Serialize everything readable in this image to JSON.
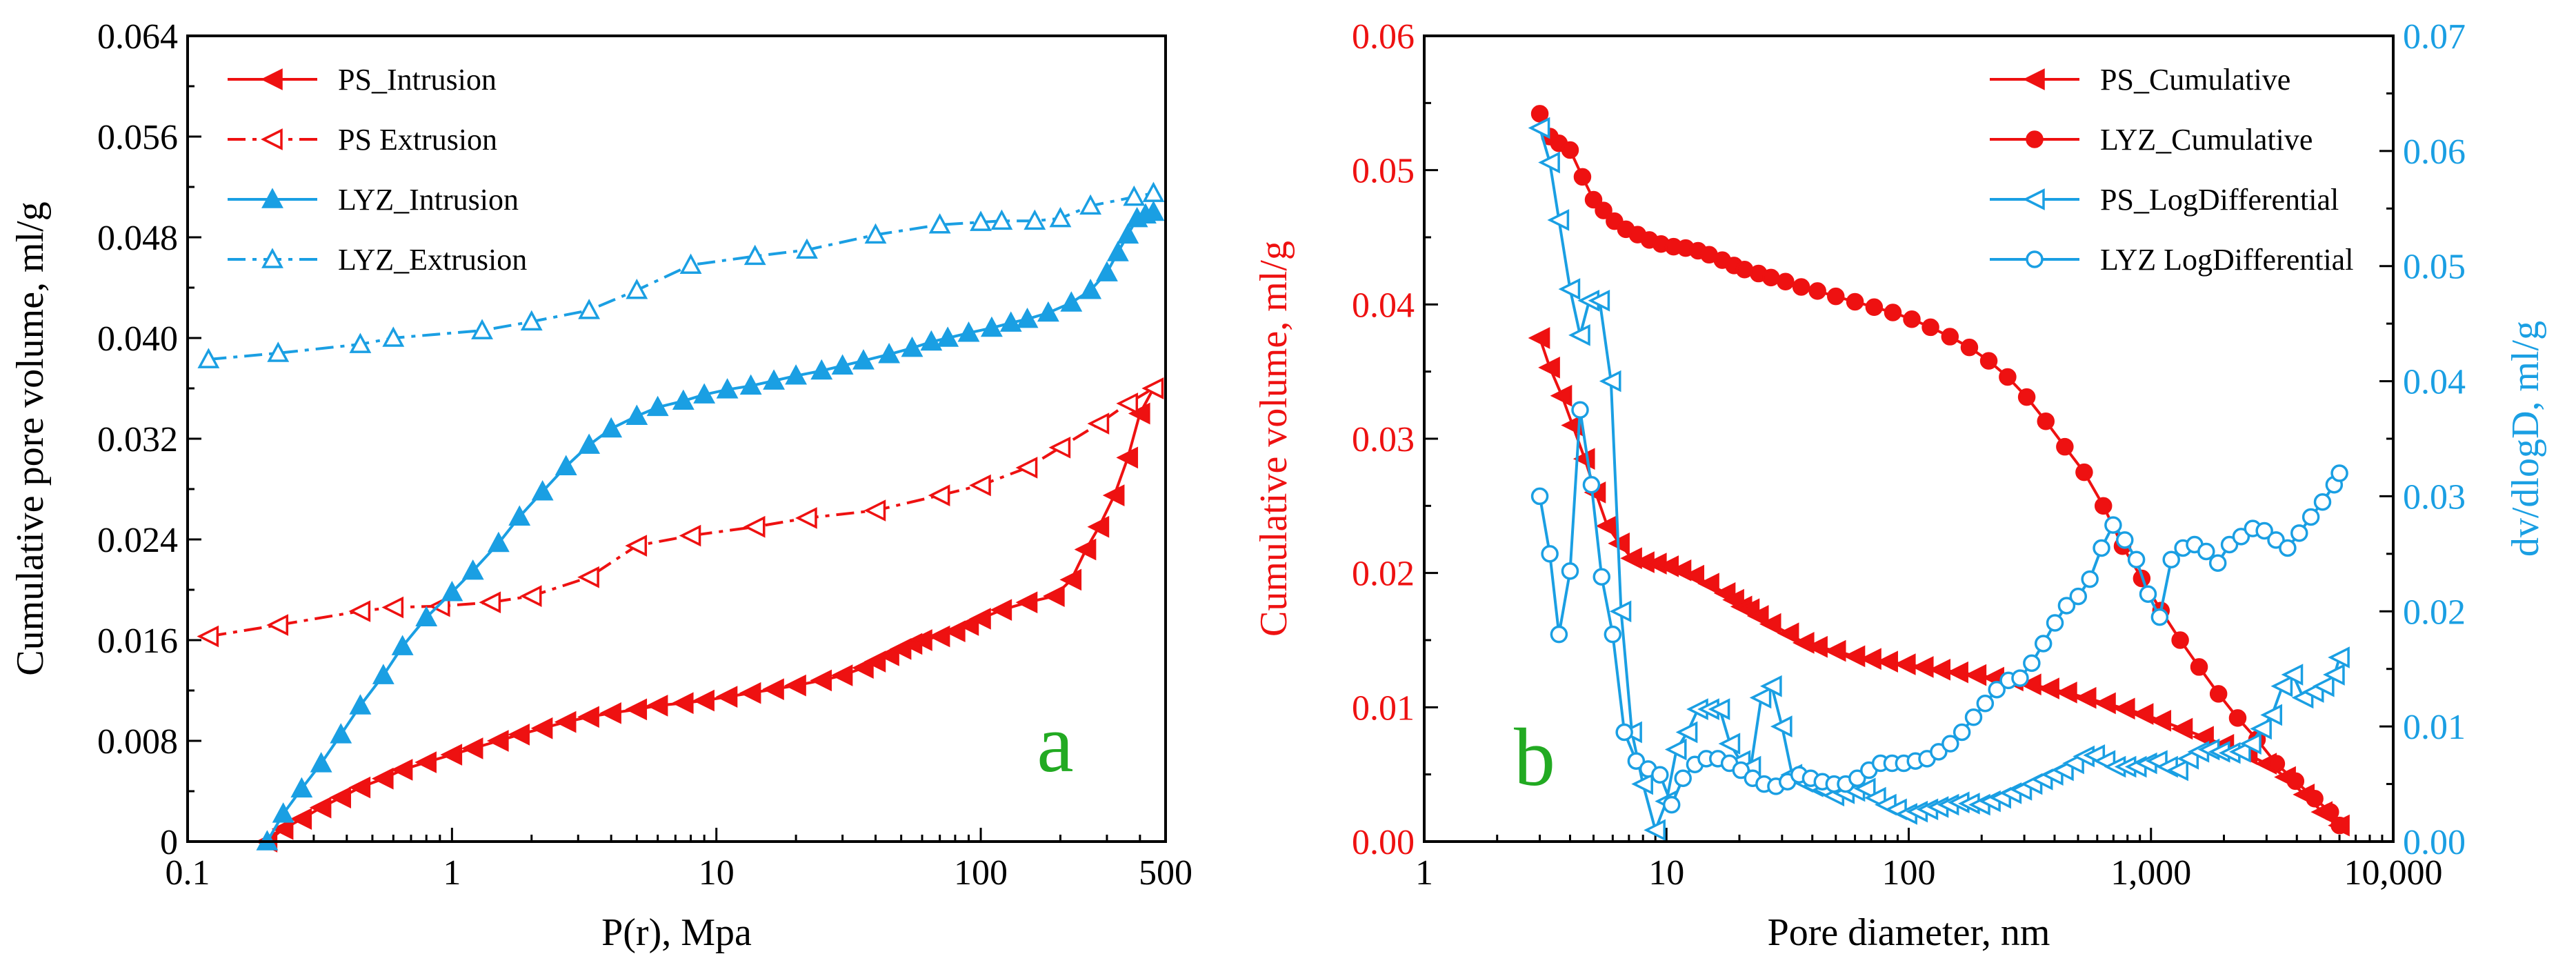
{
  "colors": {
    "red": "#ee1111",
    "blue": "#1a9fe3",
    "green": "#22aa22",
    "axis": "#000000"
  },
  "chart_data": [
    {
      "type": "line",
      "panel_label": "a",
      "xscale": "log",
      "xlabel": "P(r), Mpa",
      "ylabel": "Cumulative pore volume, ml/g",
      "xlim": [
        0.1,
        500
      ],
      "ylim": [
        0,
        0.064
      ],
      "xticks": [
        0.1,
        1,
        10,
        100,
        500
      ],
      "xtick_labels": [
        "0.1",
        "1",
        "10",
        "100",
        "500"
      ],
      "yticks": [
        0,
        0.008,
        0.016,
        0.024,
        0.032,
        0.04,
        0.048,
        0.056,
        0.064
      ],
      "ytick_labels": [
        "0",
        "0.008",
        "0.016",
        "0.024",
        "0.032",
        "0.040",
        "0.048",
        "0.056",
        "0.064"
      ],
      "legend_position": "top-left",
      "series": [
        {
          "name": "PS_Intrusion",
          "color": "red",
          "dash": "solid",
          "marker": "tri-left",
          "filled": true,
          "x": [
            0.2,
            0.23,
            0.27,
            0.32,
            0.38,
            0.45,
            0.55,
            0.65,
            0.8,
            1.0,
            1.2,
            1.5,
            1.8,
            2.2,
            2.7,
            3.3,
            4.0,
            5.0,
            6.0,
            7.5,
            9.0,
            11,
            13.5,
            16.5,
            20,
            25,
            30,
            36,
            40,
            45,
            50,
            55,
            60,
            70,
            80,
            90,
            100,
            120,
            150,
            190,
            220,
            250,
            280,
            320,
            360,
            400,
            450
          ],
          "y": [
            0,
            0.001,
            0.0018,
            0.0027,
            0.0035,
            0.0043,
            0.005,
            0.0057,
            0.0063,
            0.0069,
            0.0074,
            0.008,
            0.0085,
            0.009,
            0.0095,
            0.0099,
            0.0102,
            0.0105,
            0.0108,
            0.011,
            0.0112,
            0.0115,
            0.0118,
            0.0121,
            0.0124,
            0.0128,
            0.0132,
            0.0138,
            0.0143,
            0.0148,
            0.0153,
            0.0157,
            0.016,
            0.0163,
            0.0167,
            0.0172,
            0.0177,
            0.0184,
            0.019,
            0.0195,
            0.0208,
            0.0232,
            0.025,
            0.0275,
            0.0305,
            0.034,
            0.036
          ]
        },
        {
          "name": "PS  Extrusion",
          "color": "red",
          "dash": "dashdot",
          "marker": "tri-left",
          "filled": false,
          "x": [
            0.12,
            0.22,
            0.45,
            0.6,
            0.9,
            1.4,
            2.0,
            3.3,
            5.0,
            8.0,
            14,
            22,
            40,
            70,
            100,
            150,
            200,
            280,
            360,
            450
          ],
          "y": [
            0.0163,
            0.0172,
            0.0183,
            0.0186,
            0.0187,
            0.019,
            0.0195,
            0.021,
            0.0235,
            0.0243,
            0.025,
            0.0257,
            0.0263,
            0.0275,
            0.0283,
            0.0297,
            0.0313,
            0.0332,
            0.0348,
            0.036
          ]
        },
        {
          "name": "LYZ_Intrusion",
          "color": "blue",
          "dash": "solid",
          "marker": "tri-up",
          "filled": true,
          "x": [
            0.2,
            0.23,
            0.27,
            0.32,
            0.38,
            0.45,
            0.55,
            0.65,
            0.8,
            1.0,
            1.2,
            1.5,
            1.8,
            2.2,
            2.7,
            3.3,
            4.0,
            5.0,
            6.0,
            7.5,
            9.0,
            11,
            13.5,
            16.5,
            20,
            25,
            30,
            36,
            45,
            55,
            65,
            75,
            90,
            110,
            130,
            150,
            180,
            220,
            260,
            300,
            330,
            360,
            390,
            420,
            450
          ],
          "y": [
            0,
            0.0022,
            0.0042,
            0.0062,
            0.0085,
            0.0108,
            0.0132,
            0.0155,
            0.0178,
            0.0198,
            0.0215,
            0.0237,
            0.0258,
            0.0278,
            0.0298,
            0.0315,
            0.0328,
            0.0338,
            0.0345,
            0.035,
            0.0355,
            0.0359,
            0.0362,
            0.0366,
            0.037,
            0.0374,
            0.0378,
            0.0382,
            0.0387,
            0.0392,
            0.0397,
            0.04,
            0.0404,
            0.0408,
            0.0412,
            0.0415,
            0.042,
            0.0428,
            0.0438,
            0.0452,
            0.0468,
            0.0482,
            0.0495,
            0.0498,
            0.05
          ]
        },
        {
          "name": "LYZ_Extrusion",
          "color": "blue",
          "dash": "dashdot",
          "marker": "tri-up",
          "filled": false,
          "x": [
            0.12,
            0.22,
            0.45,
            0.6,
            1.3,
            2.0,
            3.3,
            5.0,
            8.0,
            14,
            22,
            40,
            70,
            100,
            120,
            160,
            200,
            260,
            380,
            450
          ],
          "y": [
            0.0383,
            0.0388,
            0.0395,
            0.04,
            0.0406,
            0.0413,
            0.0422,
            0.0438,
            0.0458,
            0.0465,
            0.047,
            0.0482,
            0.049,
            0.0492,
            0.0493,
            0.0493,
            0.0495,
            0.0505,
            0.0512,
            0.0515
          ]
        }
      ]
    },
    {
      "type": "line",
      "panel_label": "b",
      "xscale": "log",
      "xlabel": "Pore diameter, nm",
      "ylabel": "Cumulative volume, ml/g",
      "ylabel_right": "dv/dlogD, ml/g",
      "xlim": [
        1,
        10000
      ],
      "ylim": [
        0,
        0.06
      ],
      "ylim_right": [
        0,
        0.07
      ],
      "xticks": [
        1,
        10,
        100,
        1000,
        10000
      ],
      "xtick_labels": [
        "1",
        "10",
        "100",
        "1,000",
        "10,000"
      ],
      "yticks": [
        0,
        0.01,
        0.02,
        0.03,
        0.04,
        0.05,
        0.06
      ],
      "ytick_labels": [
        "0.00",
        "0.01",
        "0.02",
        "0.03",
        "0.04",
        "0.05",
        "0.06"
      ],
      "yticks_right": [
        0,
        0.01,
        0.02,
        0.03,
        0.04,
        0.05,
        0.06,
        0.07
      ],
      "ytick_labels_right": [
        "0.00",
        "0.01",
        "0.02",
        "0.03",
        "0.04",
        "0.05",
        "0.06",
        "0.07"
      ],
      "legend_position": "top-right",
      "series": [
        {
          "name": "PS_Cumulative",
          "color": "red",
          "dash": "solid",
          "marker": "tri-left",
          "filled": true,
          "axis": "left",
          "x": [
            3.0,
            3.3,
            3.7,
            4.1,
            4.6,
            5.1,
            5.7,
            6.4,
            7.2,
            8.1,
            9.1,
            10.2,
            11.5,
            13,
            15,
            17.5,
            19,
            20.5,
            22,
            24,
            27,
            32,
            37,
            42,
            50,
            60,
            70,
            82,
            97,
            115,
            135,
            160,
            190,
            225,
            270,
            320,
            380,
            450,
            540,
            650,
            780,
            930,
            1100,
            1350,
            1650,
            2000,
            2500,
            3000,
            3600,
            4300,
            5100,
            6000
          ],
          "y": [
            0.0375,
            0.0353,
            0.0332,
            0.031,
            0.0285,
            0.026,
            0.0235,
            0.0222,
            0.0211,
            0.0208,
            0.0207,
            0.0205,
            0.0202,
            0.0198,
            0.0192,
            0.0185,
            0.018,
            0.0175,
            0.0173,
            0.0168,
            0.0162,
            0.0155,
            0.0148,
            0.0145,
            0.0142,
            0.0138,
            0.0136,
            0.0134,
            0.0132,
            0.013,
            0.0128,
            0.0126,
            0.0124,
            0.0122,
            0.012,
            0.0117,
            0.0114,
            0.0111,
            0.0107,
            0.0103,
            0.0099,
            0.0095,
            0.009,
            0.0084,
            0.0078,
            0.0072,
            0.0065,
            0.0058,
            0.0048,
            0.0035,
            0.0022,
            0.0012
          ]
        },
        {
          "name": "LYZ_Cumulative",
          "color": "red",
          "dash": "solid",
          "marker": "circle",
          "filled": true,
          "axis": "left",
          "x": [
            3.0,
            3.3,
            3.6,
            4.0,
            4.5,
            5.0,
            5.5,
            6.1,
            6.8,
            7.6,
            8.5,
            9.5,
            10.7,
            12,
            13.5,
            15,
            17,
            19,
            21,
            24,
            27,
            31,
            36,
            42,
            50,
            60,
            72,
            86,
            103,
            123,
            148,
            178,
            214,
            256,
            307,
            368,
            441,
            530,
            636,
            763,
            916,
            1100,
            1320,
            1580,
            1900,
            2280,
            2740,
            3290,
            3950,
            4740,
            5500,
            6000
          ],
          "y": [
            0.0542,
            0.0525,
            0.052,
            0.0515,
            0.0495,
            0.0478,
            0.047,
            0.0462,
            0.0456,
            0.0452,
            0.0448,
            0.0445,
            0.0443,
            0.0442,
            0.044,
            0.0437,
            0.0433,
            0.0429,
            0.0426,
            0.0423,
            0.042,
            0.0417,
            0.0413,
            0.041,
            0.0406,
            0.0402,
            0.0398,
            0.0394,
            0.0389,
            0.0383,
            0.0376,
            0.0368,
            0.0358,
            0.0346,
            0.0331,
            0.0313,
            0.0294,
            0.0275,
            0.025,
            0.022,
            0.0196,
            0.0172,
            0.015,
            0.013,
            0.011,
            0.0092,
            0.0076,
            0.0058,
            0.0045,
            0.0032,
            0.0022,
            0.0012
          ]
        },
        {
          "name": "PS_LogDifferential",
          "color": "blue",
          "dash": "solid",
          "marker": "tri-left",
          "filled": false,
          "axis": "right",
          "x": [
            3.0,
            3.3,
            3.6,
            4.0,
            4.4,
            4.8,
            5.3,
            5.9,
            6.5,
            7.2,
            8.0,
            9.0,
            10.0,
            11.0,
            12.2,
            13.5,
            15.0,
            16.6,
            18.3,
            20.2,
            22.3,
            24.6,
            27.2,
            30.0,
            33.0,
            36.5,
            40.3,
            44.5,
            49.2,
            54.3,
            60.0,
            66.3,
            73.2,
            80.8,
            89.2,
            98.5,
            108.8,
            120.1,
            132.6,
            146.4,
            161.7,
            178.5,
            197.1,
            217.6,
            240.3,
            265.4,
            293.0,
            323.5,
            357.2,
            394.5,
            435.6,
            481.0,
            531.0,
            586.3,
            647.4,
            714.8,
            789.3,
            871.4,
            962.2,
            1062.5,
            1173.2,
            1295.3,
            1430.2,
            1579.2,
            1743.8,
            1925.4,
            2126.0,
            2347.4,
            2592.0,
            2862.0,
            3160.0,
            3489.0,
            3853.0,
            4254.0,
            4697.0,
            5186.0,
            5726.0,
            6000.0
          ],
          "y": [
            0.062,
            0.059,
            0.054,
            0.048,
            0.044,
            0.047,
            0.047,
            0.04,
            0.02,
            0.0095,
            0.005,
            0.001,
            0.0035,
            0.008,
            0.0095,
            0.0115,
            0.0115,
            0.0115,
            0.0085,
            0.007,
            0.0065,
            0.0125,
            0.0135,
            0.01,
            0.0058,
            0.0052,
            0.0048,
            0.0045,
            0.004,
            0.0042,
            0.0044,
            0.0046,
            0.0038,
            0.0032,
            0.0028,
            0.0024,
            0.0026,
            0.0028,
            0.003,
            0.0032,
            0.0034,
            0.0033,
            0.0032,
            0.0035,
            0.0038,
            0.0042,
            0.0045,
            0.005,
            0.0054,
            0.0058,
            0.0062,
            0.0068,
            0.0074,
            0.0075,
            0.007,
            0.0065,
            0.0065,
            0.0065,
            0.0068,
            0.007,
            0.0065,
            0.0062,
            0.0072,
            0.0078,
            0.008,
            0.0078,
            0.0077,
            0.0078,
            0.0085,
            0.0098,
            0.011,
            0.0135,
            0.0145,
            0.0125,
            0.013,
            0.0135,
            0.0145,
            0.016
          ]
        },
        {
          "name": "LYZ  LogDifferential",
          "color": "blue",
          "dash": "solid",
          "marker": "circle",
          "filled": false,
          "axis": "right",
          "x": [
            3.0,
            3.3,
            3.6,
            4.0,
            4.4,
            4.9,
            5.4,
            6.0,
            6.7,
            7.5,
            8.4,
            9.4,
            10.5,
            11.7,
            13.1,
            14.6,
            16.3,
            18.2,
            20.3,
            22.7,
            25.3,
            28.3,
            31.6,
            35.3,
            39.4,
            44.0,
            49.2,
            54.9,
            61.3,
            68.5,
            76.5,
            85.4,
            95.4,
            106.6,
            119.0,
            132.9,
            148.5,
            165.8,
            185.2,
            206.8,
            231.0,
            258.0,
            288.2,
            321.9,
            359.5,
            401.5,
            448.5,
            500.9,
            559.5,
            624.9,
            698.0,
            779.6,
            870.7,
            972.5,
            1086.2,
            1213.2,
            1355.0,
            1513.4,
            1690.3,
            1887.9,
            2108.7,
            2355.2,
            2630.5,
            2938.0,
            3281.5,
            3665.2,
            4093.6,
            4572.2,
            5106.7,
            5703.7,
            6000.0
          ],
          "y": [
            0.03,
            0.025,
            0.018,
            0.0235,
            0.0375,
            0.031,
            0.023,
            0.018,
            0.0095,
            0.007,
            0.0063,
            0.0058,
            0.0032,
            0.0055,
            0.0067,
            0.0072,
            0.0072,
            0.0068,
            0.0062,
            0.0055,
            0.005,
            0.0048,
            0.0052,
            0.0058,
            0.0055,
            0.0052,
            0.005,
            0.005,
            0.0055,
            0.0062,
            0.0068,
            0.0068,
            0.0068,
            0.007,
            0.0072,
            0.0078,
            0.0085,
            0.0095,
            0.0108,
            0.012,
            0.0132,
            0.014,
            0.0142,
            0.0155,
            0.0172,
            0.019,
            0.0205,
            0.0213,
            0.0228,
            0.0255,
            0.0275,
            0.0262,
            0.0245,
            0.0215,
            0.0195,
            0.0245,
            0.0255,
            0.0258,
            0.0252,
            0.0242,
            0.0258,
            0.0265,
            0.0272,
            0.027,
            0.0262,
            0.0255,
            0.0268,
            0.0282,
            0.0295,
            0.031,
            0.032
          ]
        }
      ]
    }
  ]
}
